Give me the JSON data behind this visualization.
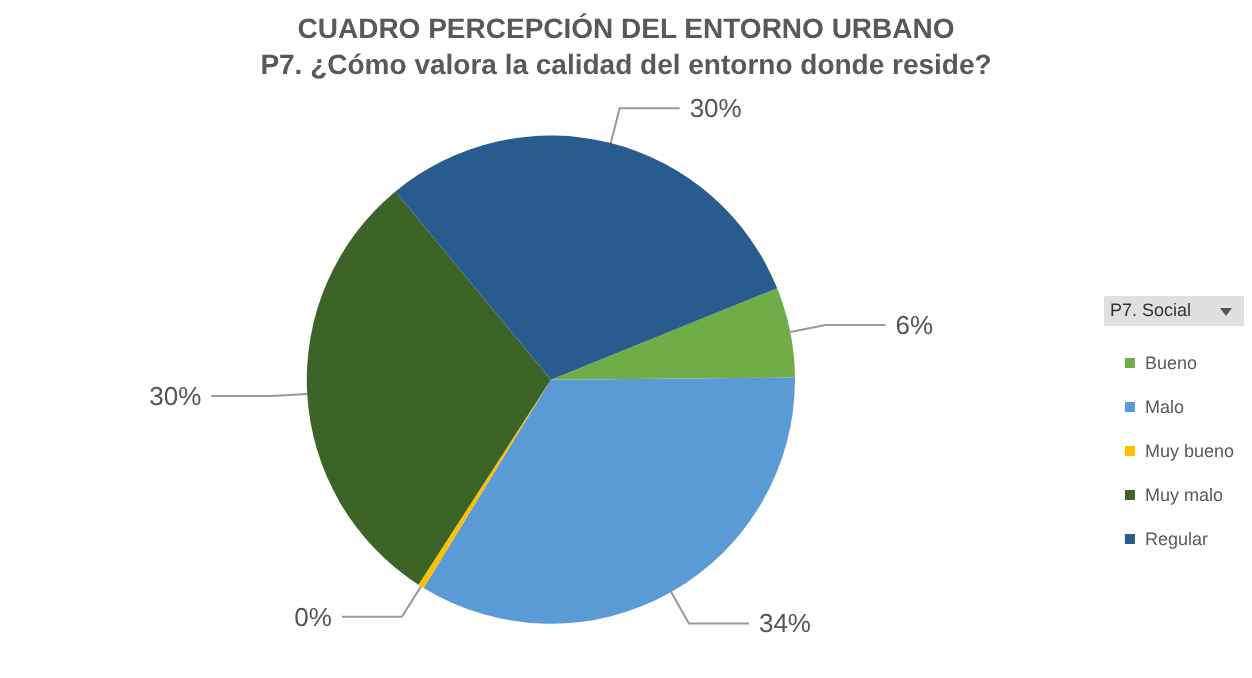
{
  "chart_data": {
    "type": "pie",
    "title": "CUADRO PERCEPCIÓN DEL ENTORNO URBANO",
    "subtitle": "P7. ¿Cómo valora la calidad del entorno donde reside?",
    "legend_title": "P7. Social",
    "legend": "right",
    "categories": [
      "Bueno",
      "Malo",
      "Muy bueno",
      "Muy malo",
      "Regular"
    ],
    "values": [
      6,
      34,
      0.4,
      30,
      30
    ],
    "value_labels": [
      "6%",
      "34%",
      "0%",
      "30%",
      "30%"
    ],
    "colors": [
      "#70ad47",
      "#5b9bd5",
      "#ffc000",
      "#3b6426",
      "#285b8e"
    ]
  }
}
